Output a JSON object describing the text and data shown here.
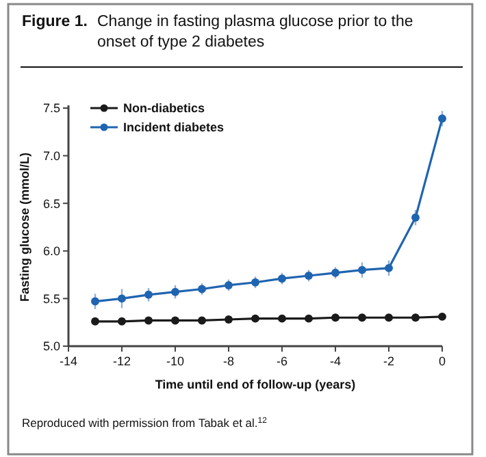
{
  "chart_data": {
    "type": "line",
    "title": "Figure 1.  Change in fasting plasma glucose prior to the onset of type 2 diabetes",
    "xlabel": "Time until end of follow-up (years)",
    "ylabel": "Fasting glucose (mmol/L)",
    "annotations": [
      "Reproduced with permission from Tabak et al.$^{12}$"
    ],
    "x": [
      -13,
      -12,
      -11,
      -10,
      -9,
      -8,
      -7,
      -6,
      -5,
      -4,
      -3,
      -2,
      -1,
      0
    ],
    "series": [
      {
        "name": "Non-diabetics",
        "color": "#1a1a1a",
        "values": [
          5.26,
          5.26,
          5.27,
          5.27,
          5.27,
          5.28,
          5.29,
          5.29,
          5.29,
          5.3,
          5.3,
          5.3,
          5.3,
          5.31
        ]
      },
      {
        "name": "Incident diabetes",
        "color": "#1f64b0",
        "values": [
          5.47,
          5.5,
          5.54,
          5.57,
          5.6,
          5.64,
          5.67,
          5.71,
          5.74,
          5.77,
          5.8,
          5.82,
          6.35,
          7.39
        ],
        "errors": [
          0.08,
          0.1,
          0.07,
          0.07,
          0.06,
          0.06,
          0.06,
          0.06,
          0.06,
          0.06,
          0.08,
          0.08,
          0.08,
          0.08
        ]
      }
    ],
    "xlim": [
      -14,
      0
    ],
    "xticks": [
      -14,
      -12,
      -10,
      -8,
      -6,
      -4,
      -2,
      0
    ],
    "ylim": [
      5,
      7.5
    ],
    "yticks": [
      {
        "value": 5,
        "label": "5.0"
      },
      {
        "value": 5.5,
        "label": "5.5"
      },
      {
        "value": 6,
        "label": "6.0"
      },
      {
        "value": 6.5,
        "label": "6.5"
      },
      {
        "value": 7,
        "label": "7.0"
      },
      {
        "value": 7.5,
        "label": "7.5"
      }
    ],
    "legend": "top left",
    "marker": "circle",
    "line_style": "solid",
    "grid": false
  }
}
